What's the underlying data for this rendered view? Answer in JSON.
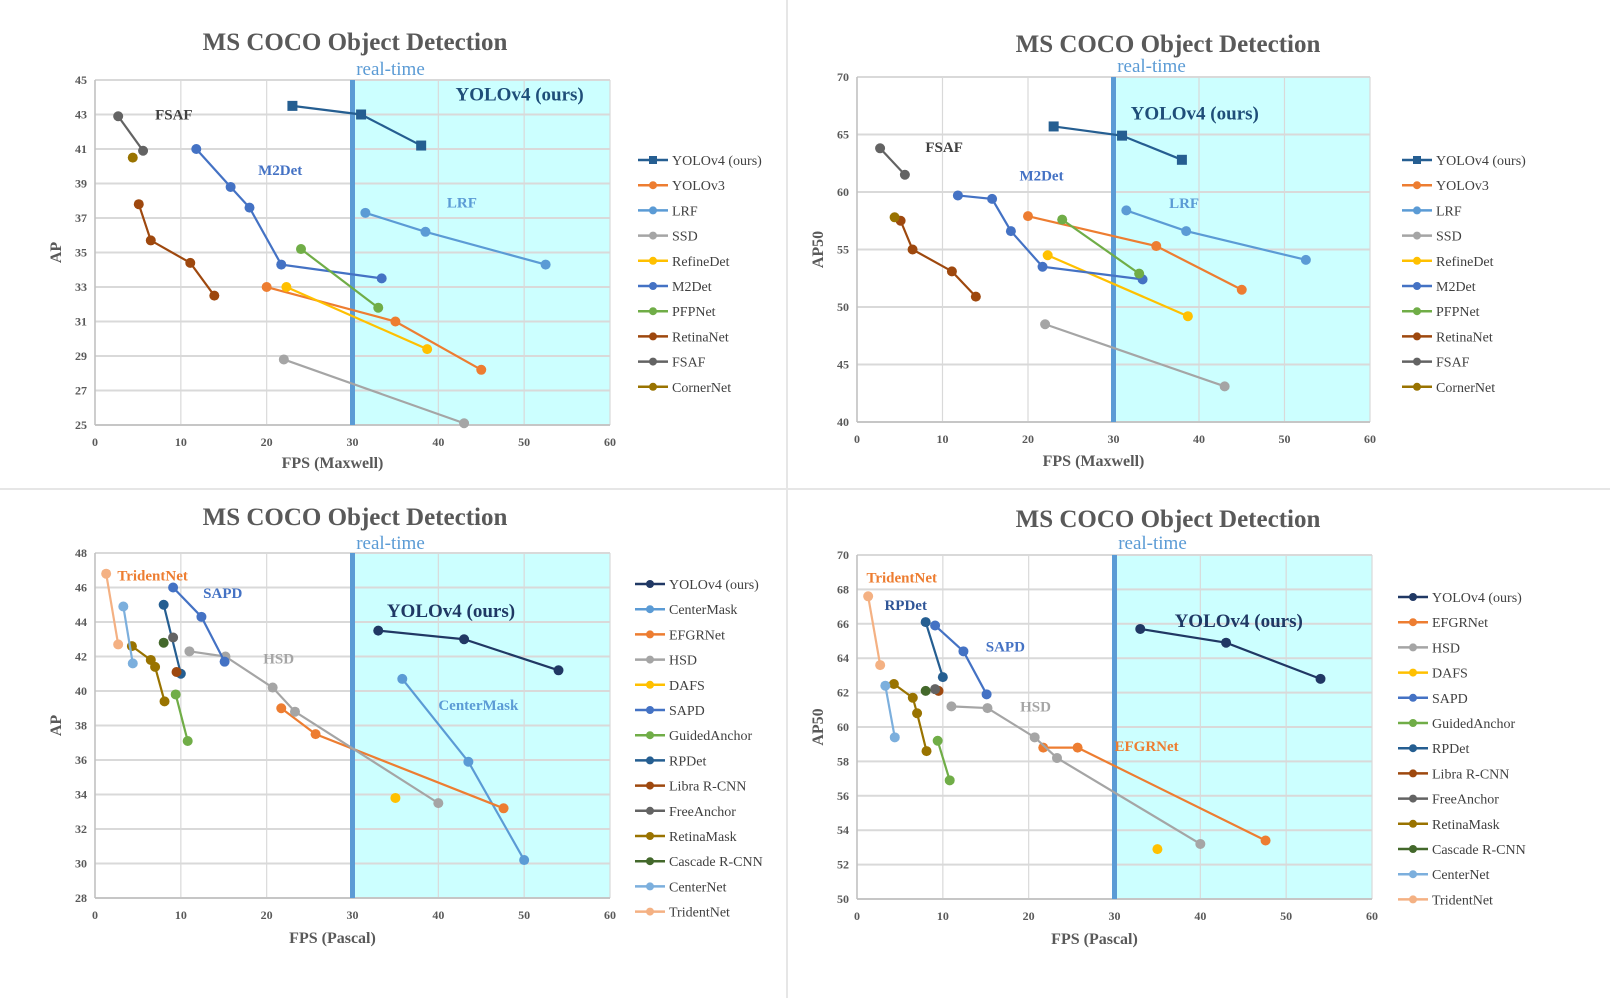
{
  "page": {
    "title": "MS COCO Object Detection speed/accuracy comparison"
  },
  "chart_data": [
    {
      "id": "maxwell-ap",
      "type": "line",
      "title": "MS COCO Object Detection",
      "realtime_label": "real-time",
      "realtime_threshold": 30,
      "xlabel": "FPS (Maxwell)",
      "ylabel": "AP",
      "xlim": [
        0,
        60
      ],
      "ylim": [
        25,
        45
      ],
      "xticks": [
        0,
        10,
        20,
        30,
        40,
        50,
        60
      ],
      "yticks": [
        25,
        27,
        29,
        31,
        33,
        35,
        37,
        39,
        41,
        43,
        45
      ],
      "grid": true,
      "legend_position": "right",
      "series": [
        {
          "name": "YOLOv4 (ours)",
          "color": "#255e91",
          "marker": "square",
          "x": [
            23,
            31,
            38
          ],
          "y": [
            43.5,
            43.0,
            41.2
          ]
        },
        {
          "name": "YOLOv3",
          "color": "#ed7d31",
          "marker": "circle",
          "x": [
            20,
            35,
            45
          ],
          "y": [
            33.0,
            31.0,
            28.2
          ]
        },
        {
          "name": "LRF",
          "color": "#5b9bd5",
          "marker": "circle",
          "x": [
            31.5,
            38.5,
            52.5
          ],
          "y": [
            37.3,
            36.2,
            34.3
          ]
        },
        {
          "name": "SSD",
          "color": "#a5a5a5",
          "marker": "circle",
          "x": [
            22,
            43
          ],
          "y": [
            28.8,
            25.1
          ]
        },
        {
          "name": "RefineDet",
          "color": "#ffc000",
          "marker": "circle",
          "x": [
            22.3,
            38.7
          ],
          "y": [
            33.0,
            29.4
          ]
        },
        {
          "name": "M2Det",
          "color": "#4472c4",
          "marker": "circle",
          "x": [
            11.8,
            15.8,
            18.0,
            21.7,
            33.4
          ],
          "y": [
            41.0,
            38.8,
            37.6,
            34.3,
            33.5
          ]
        },
        {
          "name": "PFPNet",
          "color": "#70ad47",
          "marker": "circle",
          "x": [
            24,
            33
          ],
          "y": [
            35.2,
            31.8
          ]
        },
        {
          "name": "RetinaNet",
          "color": "#9e480e",
          "marker": "circle",
          "x": [
            5.1,
            6.5,
            11.1,
            13.9
          ],
          "y": [
            37.8,
            35.7,
            34.4,
            32.5
          ]
        },
        {
          "name": "FSAF",
          "color": "#636363",
          "marker": "circle",
          "x": [
            2.7,
            5.6
          ],
          "y": [
            42.9,
            40.9
          ]
        },
        {
          "name": "CornerNet",
          "color": "#997300",
          "marker": "circle",
          "x": [
            4.4
          ],
          "y": [
            40.5
          ]
        }
      ],
      "annotations": [
        {
          "text": "YOLOv4 (ours)",
          "color": "#1f4e79",
          "size": "big",
          "x": 42,
          "y": 43.8
        },
        {
          "text": "FSAF",
          "color": "#404040",
          "x": 7,
          "y": 42.7
        },
        {
          "text": "M2Det",
          "color": "#4472c4",
          "x": 19,
          "y": 39.5
        },
        {
          "text": "LRF",
          "color": "#5b9bd5",
          "x": 41,
          "y": 37.6
        }
      ]
    },
    {
      "id": "maxwell-ap50",
      "type": "line",
      "title": "MS COCO Object Detection",
      "realtime_label": "real-time",
      "realtime_threshold": 30,
      "xlabel": "FPS (Maxwell)",
      "ylabel": "AP50",
      "xlim": [
        0,
        60
      ],
      "ylim": [
        40,
        70
      ],
      "xticks": [
        0,
        10,
        20,
        30,
        40,
        50,
        60
      ],
      "yticks": [
        40,
        45,
        50,
        55,
        60,
        65,
        70
      ],
      "grid": true,
      "legend_position": "right",
      "series": [
        {
          "name": "YOLOv4 (ours)",
          "color": "#255e91",
          "marker": "square",
          "x": [
            23,
            31,
            38
          ],
          "y": [
            65.7,
            64.9,
            62.8
          ]
        },
        {
          "name": "YOLOv3",
          "color": "#ed7d31",
          "marker": "circle",
          "x": [
            20,
            35,
            45
          ],
          "y": [
            57.9,
            55.3,
            51.5
          ]
        },
        {
          "name": "LRF",
          "color": "#5b9bd5",
          "marker": "circle",
          "x": [
            31.5,
            38.5,
            52.5
          ],
          "y": [
            58.4,
            56.6,
            54.1
          ]
        },
        {
          "name": "SSD",
          "color": "#a5a5a5",
          "marker": "circle",
          "x": [
            22,
            43
          ],
          "y": [
            48.5,
            43.1
          ]
        },
        {
          "name": "RefineDet",
          "color": "#ffc000",
          "marker": "circle",
          "x": [
            22.3,
            38.7
          ],
          "y": [
            54.5,
            49.2
          ]
        },
        {
          "name": "M2Det",
          "color": "#4472c4",
          "marker": "circle",
          "x": [
            11.8,
            15.8,
            18.0,
            21.7,
            33.4
          ],
          "y": [
            59.7,
            59.4,
            56.6,
            53.5,
            52.4
          ]
        },
        {
          "name": "PFPNet",
          "color": "#70ad47",
          "marker": "circle",
          "x": [
            24,
            33
          ],
          "y": [
            57.6,
            52.9
          ]
        },
        {
          "name": "RetinaNet",
          "color": "#9e480e",
          "marker": "circle",
          "x": [
            5.1,
            6.5,
            11.1,
            13.9
          ],
          "y": [
            57.5,
            55.0,
            53.1,
            50.9
          ]
        },
        {
          "name": "FSAF",
          "color": "#636363",
          "marker": "circle",
          "x": [
            2.7,
            5.6
          ],
          "y": [
            63.8,
            61.5
          ]
        },
        {
          "name": "CornerNet",
          "color": "#997300",
          "marker": "circle",
          "x": [
            4.4
          ],
          "y": [
            57.8
          ]
        }
      ],
      "annotations": [
        {
          "text": "YOLOv4 (ours)",
          "color": "#1f4e79",
          "size": "big",
          "x": 32,
          "y": 66.3
        },
        {
          "text": "FSAF",
          "color": "#404040",
          "x": 8,
          "y": 63.5
        },
        {
          "text": "M2Det",
          "color": "#4472c4",
          "x": 19,
          "y": 61
        },
        {
          "text": "LRF",
          "color": "#5b9bd5",
          "x": 36.5,
          "y": 58.6
        }
      ]
    },
    {
      "id": "pascal-ap",
      "type": "line",
      "title": "MS COCO Object Detection",
      "realtime_label": "real-time",
      "realtime_threshold": 30,
      "xlabel": "FPS (Pascal)",
      "ylabel": "AP",
      "xlim": [
        0,
        60
      ],
      "ylim": [
        28,
        48
      ],
      "xticks": [
        0,
        10,
        20,
        30,
        40,
        50,
        60
      ],
      "yticks": [
        28,
        30,
        32,
        34,
        36,
        38,
        40,
        42,
        44,
        46,
        48
      ],
      "grid": true,
      "legend_position": "right",
      "series": [
        {
          "name": "YOLOv4 (ours)",
          "color": "#203864",
          "marker": "circle",
          "x": [
            33,
            43,
            54
          ],
          "y": [
            43.5,
            43.0,
            41.2
          ]
        },
        {
          "name": "CenterMask",
          "color": "#5b9bd5",
          "marker": "circle",
          "x": [
            35.8,
            43.5,
            50
          ],
          "y": [
            40.7,
            35.9,
            30.2
          ]
        },
        {
          "name": "EFGRNet",
          "color": "#ed7d31",
          "marker": "circle",
          "x": [
            21.7,
            25.7,
            47.6
          ],
          "y": [
            39.0,
            37.5,
            33.2
          ]
        },
        {
          "name": "HSD",
          "color": "#a5a5a5",
          "marker": "circle",
          "x": [
            11,
            15.2,
            20.7,
            23.3,
            40
          ],
          "y": [
            42.3,
            42.0,
            40.2,
            38.8,
            33.5
          ]
        },
        {
          "name": "DAFS",
          "color": "#ffc000",
          "marker": "circle",
          "x": [
            35
          ],
          "y": [
            33.8
          ]
        },
        {
          "name": "SAPD",
          "color": "#4472c4",
          "marker": "circle",
          "x": [
            9.1,
            12.4,
            15.1
          ],
          "y": [
            46.0,
            44.3,
            41.7
          ]
        },
        {
          "name": "GuidedAnchor",
          "color": "#70ad47",
          "marker": "circle",
          "x": [
            9.4,
            10.8
          ],
          "y": [
            39.8,
            37.1
          ]
        },
        {
          "name": "RPDet",
          "color": "#255e91",
          "marker": "circle",
          "x": [
            8,
            10
          ],
          "y": [
            45.0,
            41.0
          ]
        },
        {
          "name": "Libra R-CNN",
          "color": "#9e480e",
          "marker": "circle",
          "x": [
            9.5
          ],
          "y": [
            41.1
          ]
        },
        {
          "name": "FreeAnchor",
          "color": "#636363",
          "marker": "circle",
          "x": [
            9.1
          ],
          "y": [
            43.1
          ]
        },
        {
          "name": "RetinaMask",
          "color": "#997300",
          "marker": "circle",
          "x": [
            4.3,
            6.5,
            7.0,
            8.1
          ],
          "y": [
            42.6,
            41.8,
            41.4,
            39.4
          ]
        },
        {
          "name": "Cascade R-CNN",
          "color": "#43682b",
          "marker": "circle",
          "x": [
            8
          ],
          "y": [
            42.8
          ]
        },
        {
          "name": "CenterNet",
          "color": "#7cafdd",
          "marker": "circle",
          "x": [
            3.3,
            4.4
          ],
          "y": [
            44.9,
            41.6
          ]
        },
        {
          "name": "TridentNet",
          "color": "#f4b183",
          "marker": "circle",
          "x": [
            1.3,
            2.7
          ],
          "y": [
            46.8,
            42.7
          ]
        }
      ],
      "annotations": [
        {
          "text": "YOLOv4 (ours)",
          "color": "#1f3864",
          "size": "big",
          "x": 34,
          "y": 44.3
        },
        {
          "text": "TridentNet",
          "color": "#ed7d31",
          "x": 2.6,
          "y": 46.4
        },
        {
          "text": "SAPD",
          "color": "#4472c4",
          "x": 12.6,
          "y": 45.4
        },
        {
          "text": "HSD",
          "color": "#a5a5a5",
          "x": 19.6,
          "y": 41.6
        },
        {
          "text": "CenterMask",
          "color": "#5b9bd5",
          "x": 40,
          "y": 38.9
        }
      ]
    },
    {
      "id": "pascal-ap50",
      "type": "line",
      "title": "MS COCO Object Detection",
      "realtime_label": "real-time",
      "realtime_threshold": 30,
      "xlabel": "FPS (Pascal)",
      "ylabel": "AP50",
      "xlim": [
        0,
        60
      ],
      "ylim": [
        50,
        70
      ],
      "xticks": [
        0,
        10,
        20,
        30,
        40,
        50,
        60
      ],
      "yticks": [
        50,
        52,
        54,
        56,
        58,
        60,
        62,
        64,
        66,
        68,
        70
      ],
      "grid": true,
      "legend_position": "right",
      "series": [
        {
          "name": "YOLOv4 (ours)",
          "color": "#203864",
          "marker": "circle",
          "x": [
            33,
            43,
            54
          ],
          "y": [
            65.7,
            64.9,
            62.8
          ]
        },
        {
          "name": "EFGRNet",
          "color": "#ed7d31",
          "marker": "circle",
          "x": [
            21.7,
            25.7,
            47.6
          ],
          "y": [
            58.8,
            58.8,
            53.4
          ]
        },
        {
          "name": "HSD",
          "color": "#a5a5a5",
          "marker": "circle",
          "x": [
            11,
            15.2,
            20.7,
            23.3,
            40
          ],
          "y": [
            61.2,
            61.1,
            59.4,
            58.2,
            53.2
          ]
        },
        {
          "name": "DAFS",
          "color": "#ffc000",
          "marker": "circle",
          "x": [
            35
          ],
          "y": [
            52.9
          ]
        },
        {
          "name": "SAPD",
          "color": "#4472c4",
          "marker": "circle",
          "x": [
            9.1,
            12.4,
            15.1
          ],
          "y": [
            65.9,
            64.4,
            61.9
          ]
        },
        {
          "name": "GuidedAnchor",
          "color": "#70ad47",
          "marker": "circle",
          "x": [
            9.4,
            10.8
          ],
          "y": [
            59.2,
            56.9
          ]
        },
        {
          "name": "RPDet",
          "color": "#255e91",
          "marker": "circle",
          "x": [
            8,
            10
          ],
          "y": [
            66.1,
            62.9
          ]
        },
        {
          "name": "Libra R-CNN",
          "color": "#9e480e",
          "marker": "circle",
          "x": [
            9.5
          ],
          "y": [
            62.1
          ]
        },
        {
          "name": "FreeAnchor",
          "color": "#636363",
          "marker": "circle",
          "x": [
            9.1
          ],
          "y": [
            62.2
          ]
        },
        {
          "name": "RetinaMask",
          "color": "#997300",
          "marker": "circle",
          "x": [
            4.3,
            6.5,
            7.0,
            8.1
          ],
          "y": [
            62.5,
            61.7,
            60.8,
            58.6
          ]
        },
        {
          "name": "Cascade R-CNN",
          "color": "#43682b",
          "marker": "circle",
          "x": [
            8
          ],
          "y": [
            62.1
          ]
        },
        {
          "name": "CenterNet",
          "color": "#7cafdd",
          "marker": "circle",
          "x": [
            3.3,
            4.4
          ],
          "y": [
            62.4,
            59.4
          ]
        },
        {
          "name": "TridentNet",
          "color": "#f4b183",
          "marker": "circle",
          "x": [
            1.3,
            2.7
          ],
          "y": [
            67.6,
            63.6
          ]
        }
      ],
      "annotations": [
        {
          "text": "YOLOv4 (ours)",
          "color": "#1f3864",
          "size": "big",
          "x": 37,
          "y": 65.8
        },
        {
          "text": "TridentNet",
          "color": "#ed7d31",
          "x": 1.1,
          "y": 68.4
        },
        {
          "text": "RPDet",
          "color": "#2f5597",
          "x": 3.2,
          "y": 66.8
        },
        {
          "text": "SAPD",
          "color": "#4472c4",
          "x": 15,
          "y": 64.4
        },
        {
          "text": "HSD",
          "color": "#a5a5a5",
          "x": 19,
          "y": 60.9
        },
        {
          "text": "EFGRNet",
          "color": "#ed7d31",
          "x": 30,
          "y": 58.6
        }
      ]
    }
  ],
  "theme": {
    "realtime_fill": "#ccffff",
    "realtime_line": "#5b9bd5",
    "grid": "#d9d9d9",
    "axis_text": "#595959"
  }
}
